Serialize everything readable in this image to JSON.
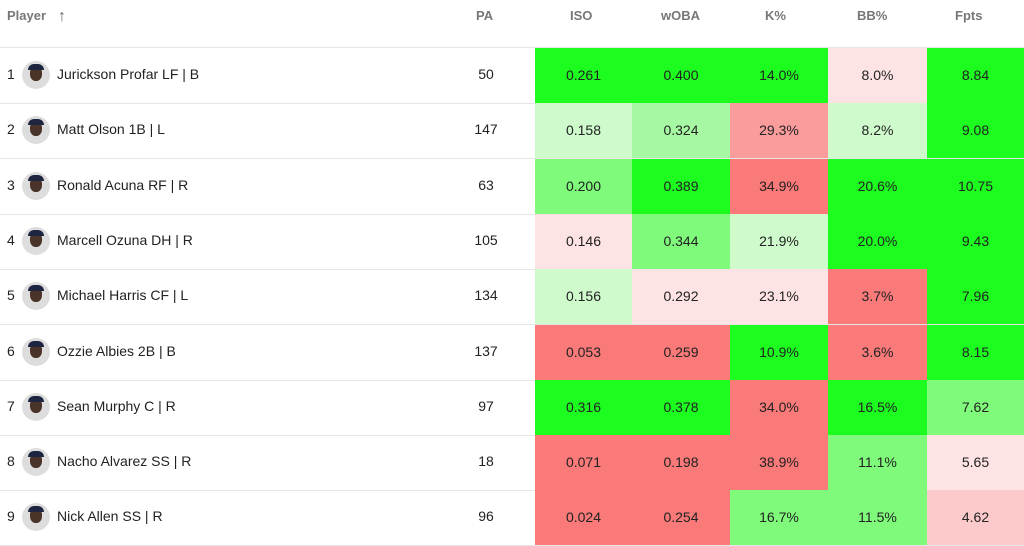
{
  "headers": {
    "player": "Player",
    "pa": "PA",
    "iso": "ISO",
    "woba": "wOBA",
    "k": "K%",
    "bb": "BB%",
    "fpts": "Fpts"
  },
  "colors": {
    "G3": "#1cfc1f",
    "G2": "#7ffa7b",
    "G1": "#a7f8a3",
    "G0": "#cffbcc",
    "P0": "#fde3e3",
    "P1": "#fccaca",
    "R1": "#fb9c9c",
    "R": "#fa7979"
  },
  "rows": [
    {
      "rank": "1",
      "name": "Jurickson Profar LF | B",
      "pa": "50",
      "iso": "0.261",
      "woba": "0.400",
      "k": "14.0%",
      "bb": "8.0%",
      "fpts": "8.84",
      "shade": [
        "G3",
        "G3",
        "G3",
        "P0",
        "G3"
      ]
    },
    {
      "rank": "2",
      "name": "Matt Olson 1B | L",
      "pa": "147",
      "iso": "0.158",
      "woba": "0.324",
      "k": "29.3%",
      "bb": "8.2%",
      "fpts": "9.08",
      "shade": [
        "G0",
        "G1",
        "R1",
        "G0",
        "G3"
      ]
    },
    {
      "rank": "3",
      "name": "Ronald Acuna RF | R",
      "pa": "63",
      "iso": "0.200",
      "woba": "0.389",
      "k": "34.9%",
      "bb": "20.6%",
      "fpts": "10.75",
      "shade": [
        "G2",
        "G3",
        "R",
        "G3",
        "G3"
      ]
    },
    {
      "rank": "4",
      "name": "Marcell Ozuna DH | R",
      "pa": "105",
      "iso": "0.146",
      "woba": "0.344",
      "k": "21.9%",
      "bb": "20.0%",
      "fpts": "9.43",
      "shade": [
        "P0",
        "G2",
        "G0",
        "G3",
        "G3"
      ]
    },
    {
      "rank": "5",
      "name": "Michael Harris CF | L",
      "pa": "134",
      "iso": "0.156",
      "woba": "0.292",
      "k": "23.1%",
      "bb": "3.7%",
      "fpts": "7.96",
      "shade": [
        "G0",
        "P0",
        "P0",
        "R",
        "G3"
      ]
    },
    {
      "rank": "6",
      "name": "Ozzie Albies 2B | B",
      "pa": "137",
      "iso": "0.053",
      "woba": "0.259",
      "k": "10.9%",
      "bb": "3.6%",
      "fpts": "8.15",
      "shade": [
        "R",
        "R",
        "G3",
        "R",
        "G3"
      ]
    },
    {
      "rank": "7",
      "name": "Sean Murphy C | R",
      "pa": "97",
      "iso": "0.316",
      "woba": "0.378",
      "k": "34.0%",
      "bb": "16.5%",
      "fpts": "7.62",
      "shade": [
        "G3",
        "G3",
        "R",
        "G3",
        "G2"
      ]
    },
    {
      "rank": "8",
      "name": "Nacho Alvarez SS | R",
      "pa": "18",
      "iso": "0.071",
      "woba": "0.198",
      "k": "38.9%",
      "bb": "11.1%",
      "fpts": "5.65",
      "shade": [
        "R",
        "R",
        "R",
        "G2",
        "P0"
      ]
    },
    {
      "rank": "9",
      "name": "Nick Allen SS | R",
      "pa": "96",
      "iso": "0.024",
      "woba": "0.254",
      "k": "16.7%",
      "bb": "11.5%",
      "fpts": "4.62",
      "shade": [
        "R",
        "R",
        "G2",
        "G2",
        "P1"
      ]
    }
  ]
}
